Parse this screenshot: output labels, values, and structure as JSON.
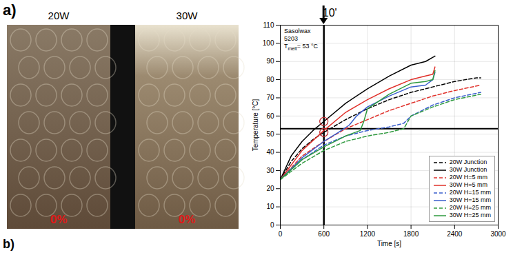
{
  "panel_labels": [
    "a)",
    "b)"
  ],
  "photos": [
    {
      "title": "20W",
      "label": "0%"
    },
    {
      "title": "30W",
      "label": "0%"
    }
  ],
  "chart_data": {
    "type": "line",
    "x_label": "Time [s]",
    "y_label": "Temperature [°C]",
    "xlim": [
      0,
      3000
    ],
    "xticks": [
      0,
      600,
      1200,
      1800,
      2400,
      3000
    ],
    "ylim": [
      0,
      110
    ],
    "yticks": [
      0,
      10,
      20,
      30,
      40,
      50,
      60,
      70,
      80,
      90,
      100,
      110
    ],
    "grid": true,
    "legend": "bottom-right",
    "annotations": {
      "lines": [
        "Sasolwax",
        "5203"
      ],
      "melt": {
        "base": "T",
        "subscript": "melt",
        "text": "= 53 °C"
      }
    },
    "reference_lines": {
      "x": 600,
      "x_label": "10'",
      "y": 53
    },
    "markers": {
      "x": [
        600,
        600
      ],
      "y": [
        57,
        51
      ],
      "color": "#c0282d"
    },
    "series": [
      {
        "name": "20W Junction",
        "color": "#000000",
        "line_style": "dashed",
        "x": [
          0,
          150,
          300,
          450,
          600,
          900,
          1200,
          1500,
          1800,
          2100,
          2400,
          2700,
          2760
        ],
        "values": [
          25,
          35,
          42,
          47,
          51,
          58,
          64,
          69,
          73,
          76,
          79,
          81,
          81
        ]
      },
      {
        "name": "30W Junction",
        "color": "#000000",
        "line_style": "solid",
        "x": [
          0,
          150,
          300,
          450,
          600,
          900,
          1200,
          1500,
          1800,
          2000,
          2130
        ],
        "values": [
          25,
          38,
          46,
          52,
          57,
          67,
          75,
          82,
          88,
          90,
          93
        ]
      },
      {
        "name": "20W H=5 mm",
        "color": "#e0302a",
        "line_style": "dashed",
        "x": [
          0,
          300,
          600,
          900,
          1200,
          1500,
          1800,
          2100,
          2400,
          2760
        ],
        "values": [
          25,
          38,
          46,
          53,
          58,
          63,
          67,
          71,
          74,
          77
        ]
      },
      {
        "name": "30W H=5 mm",
        "color": "#e0302a",
        "line_style": "solid",
        "x": [
          0,
          300,
          600,
          900,
          1200,
          1500,
          1800,
          2000,
          2100,
          2130
        ],
        "values": [
          25,
          41,
          52,
          62,
          69,
          75,
          80,
          82,
          83,
          87
        ]
      },
      {
        "name": "20W H=15 mm",
        "color": "#3a5fcd",
        "line_style": "dashed",
        "x": [
          0,
          300,
          600,
          900,
          1200,
          1500,
          1700,
          1800,
          2100,
          2400,
          2760
        ],
        "values": [
          25,
          36,
          44,
          49,
          52,
          54,
          56,
          60,
          66,
          70,
          73
        ]
      },
      {
        "name": "30W H=15 mm",
        "color": "#3a5fcd",
        "line_style": "solid",
        "x": [
          0,
          300,
          600,
          800,
          950,
          1050,
          1200,
          1500,
          1800,
          2000,
          2100,
          2130
        ],
        "values": [
          25,
          37,
          46,
          51,
          55,
          60,
          65,
          71,
          76,
          77,
          80,
          84
        ]
      },
      {
        "name": "20W H=25 mm",
        "color": "#2e9a3e",
        "line_style": "dashed",
        "x": [
          0,
          300,
          600,
          900,
          1200,
          1500,
          1700,
          1800,
          2100,
          2400,
          2760
        ],
        "values": [
          25,
          34,
          41,
          46,
          49,
          51,
          53,
          60,
          65,
          69,
          72
        ]
      },
      {
        "name": "30W H=25 mm",
        "color": "#2e9a3e",
        "line_style": "solid",
        "x": [
          0,
          300,
          600,
          900,
          1100,
          1150,
          1200,
          1500,
          1800,
          2000,
          2100,
          2130
        ],
        "values": [
          25,
          36,
          43,
          49,
          52,
          57,
          64,
          72,
          78,
          79,
          80,
          85
        ]
      }
    ]
  }
}
